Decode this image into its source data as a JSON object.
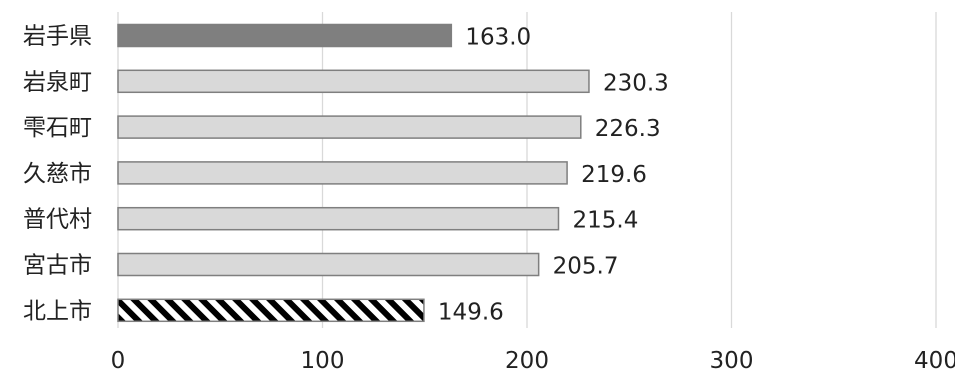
{
  "chart_data": {
    "type": "bar",
    "orientation": "horizontal",
    "categories": [
      "岩手県",
      "岩泉町",
      "雫石町",
      "久慈市",
      "普代村",
      "宮古市",
      "北上市"
    ],
    "values": [
      163.0,
      230.3,
      226.3,
      219.6,
      215.4,
      205.7,
      149.6
    ],
    "value_labels": [
      "163.0",
      "230.3",
      "226.3",
      "219.6",
      "215.4",
      "205.7",
      "149.6"
    ],
    "bar_styles": [
      "dark",
      "light",
      "light",
      "light",
      "light",
      "light",
      "hatched"
    ],
    "xlim": [
      0,
      400
    ],
    "xticks": [
      0,
      100,
      200,
      300,
      400
    ],
    "xtick_labels": [
      "0",
      "100",
      "200",
      "300",
      "400"
    ],
    "grid": "vertical",
    "title": "",
    "xlabel": "",
    "ylabel": "",
    "colors": {
      "dark": "#7f7f7f",
      "light": "#d9d9d9",
      "hatch": "#000000",
      "outline": "#7f7f7f",
      "grid": "#d9d9d9"
    }
  }
}
